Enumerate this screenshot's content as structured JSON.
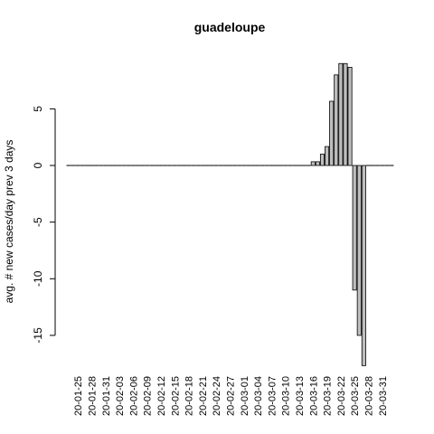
{
  "chart_data": {
    "type": "bar",
    "title": "guadeloupe",
    "xlabel": "",
    "ylabel": "avg. # new cases/day prev  3  days",
    "ylim": [
      -17.8,
      9.9
    ],
    "yticks": [
      -15,
      -10,
      -5,
      0,
      5
    ],
    "x_tick_labels": [
      "20-01-25",
      "20-01-28",
      "20-01-31",
      "20-02-03",
      "20-02-06",
      "20-02-09",
      "20-02-12",
      "20-02-15",
      "20-02-18",
      "20-02-21",
      "20-02-24",
      "20-02-27",
      "20-03-01",
      "20-03-04",
      "20-03-07",
      "20-03-10",
      "20-03-13",
      "20-03-16",
      "20-03-19",
      "20-03-22",
      "20-03-25",
      "20-03-28",
      "20-03-31"
    ],
    "categories": [
      "20-01-23",
      "20-01-24",
      "20-01-25",
      "20-01-26",
      "20-01-27",
      "20-01-28",
      "20-01-29",
      "20-01-30",
      "20-01-31",
      "20-02-01",
      "20-02-02",
      "20-02-03",
      "20-02-04",
      "20-02-05",
      "20-02-06",
      "20-02-07",
      "20-02-08",
      "20-02-09",
      "20-02-10",
      "20-02-11",
      "20-02-12",
      "20-02-13",
      "20-02-14",
      "20-02-15",
      "20-02-16",
      "20-02-17",
      "20-02-18",
      "20-02-19",
      "20-02-20",
      "20-02-21",
      "20-02-22",
      "20-02-23",
      "20-02-24",
      "20-02-25",
      "20-02-26",
      "20-02-27",
      "20-02-28",
      "20-02-29",
      "20-03-01",
      "20-03-02",
      "20-03-03",
      "20-03-04",
      "20-03-05",
      "20-03-06",
      "20-03-07",
      "20-03-08",
      "20-03-09",
      "20-03-10",
      "20-03-11",
      "20-03-12",
      "20-03-13",
      "20-03-14",
      "20-03-15",
      "20-03-16",
      "20-03-17",
      "20-03-18",
      "20-03-19",
      "20-03-20",
      "20-03-21",
      "20-03-22",
      "20-03-23",
      "20-03-24",
      "20-03-25",
      "20-03-26",
      "20-03-27",
      "20-03-28",
      "20-03-29",
      "20-03-30",
      "20-03-31",
      "20-04-01",
      "20-04-02"
    ],
    "values": [
      0,
      0,
      0,
      0,
      0,
      0,
      0,
      0,
      0,
      0,
      0,
      0,
      0,
      0,
      0,
      0,
      0,
      0,
      0,
      0,
      0,
      0,
      0,
      0,
      0,
      0,
      0,
      0,
      0,
      0,
      0,
      0,
      0,
      0,
      0,
      0,
      0,
      0,
      0,
      0,
      0,
      0,
      0,
      0,
      0,
      0,
      0,
      0,
      0,
      0,
      0,
      0,
      0,
      0.33,
      0.33,
      1,
      1.67,
      5.67,
      8,
      9,
      9,
      8.67,
      -11,
      -15,
      -17.67,
      0,
      0,
      0,
      0,
      0,
      0
    ],
    "bar_color": "#bebebe",
    "grid": false
  }
}
